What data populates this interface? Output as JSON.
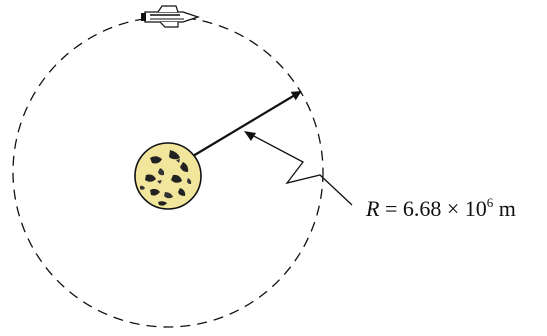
{
  "diagram": {
    "label": {
      "symbol": "R",
      "equals": " = ",
      "mantissa": "6.68",
      "times": " × ",
      "base": "10",
      "exponent": "6",
      "unit": " m"
    },
    "colors": {
      "stroke": "#111111",
      "planet_fill": "#f1e69b",
      "background": "#ffffff"
    },
    "icons": {
      "planet": "planet-icon",
      "spacecraft": "spacecraft-icon"
    }
  }
}
